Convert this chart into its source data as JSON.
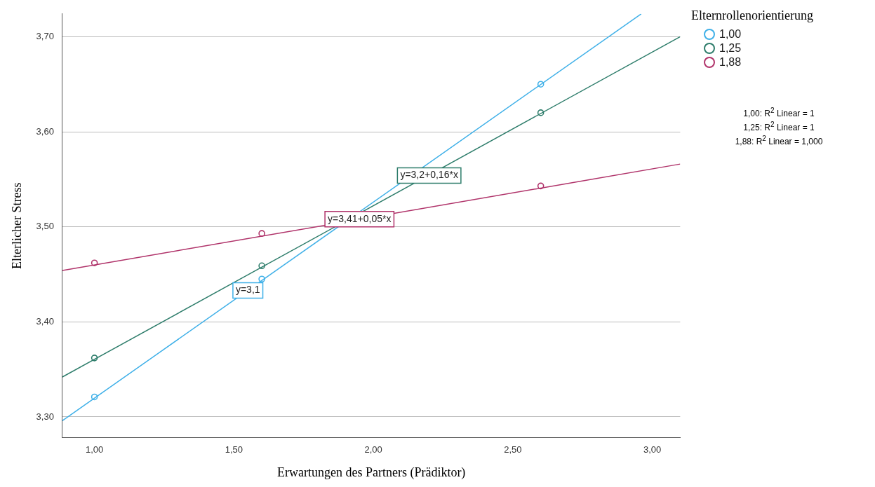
{
  "chart_data": {
    "type": "scatter",
    "xlabel": "Erwartungen des Partners (Prädiktor)",
    "ylabel": "Elterlicher Stress",
    "legend_title": "Elternrollenorientierung",
    "xlim": [
      0.885,
      3.1
    ],
    "xticks": [
      {
        "value": 1,
        "label": "1,00"
      },
      {
        "value": 1.5,
        "label": "1,50"
      },
      {
        "value": 2,
        "label": "2,00"
      },
      {
        "value": 2.5,
        "label": "2,50"
      },
      {
        "value": 3,
        "label": "3,00"
      }
    ],
    "ylim": [
      3.278,
      3.724
    ],
    "yticks": [
      {
        "value": 3.3,
        "label": "3,30"
      },
      {
        "value": 3.4,
        "label": "3,40"
      },
      {
        "value": 3.5,
        "label": "3,50"
      },
      {
        "value": 3.6,
        "label": "3,60"
      },
      {
        "value": 3.7,
        "label": "3,70"
      }
    ],
    "grid": "y",
    "legend": "right",
    "marker": "circle",
    "series": [
      {
        "name": "1,00",
        "color": "#3fb0e8",
        "x": [
          1,
          1.6,
          2.6
        ],
        "values": [
          3.321,
          3.445,
          3.65
        ]
      },
      {
        "name": "1,25",
        "color": "#2e7d6b",
        "x": [
          1,
          1.6,
          2.6
        ],
        "values": [
          3.362,
          3.459,
          3.62
        ]
      },
      {
        "name": "1,88",
        "color": "#b0336a",
        "x": [
          1,
          1.6,
          2.6
        ],
        "values": [
          3.462,
          3.493,
          3.543
        ]
      },
      {
        "type": "line",
        "marker": "none",
        "color": "#3fb0e8",
        "x": [
          0.885,
          2.96
        ],
        "values": [
          3.296,
          3.724
        ]
      },
      {
        "type": "line",
        "marker": "none",
        "color": "#2e7d6b",
        "x": [
          0.885,
          3.1
        ],
        "values": [
          3.342,
          3.7
        ]
      },
      {
        "type": "line",
        "marker": "none",
        "color": "#b0336a",
        "x": [
          0.885,
          3.1
        ],
        "values": [
          3.454,
          3.566
        ]
      }
    ],
    "annotations": [
      {
        "text": "y=3,1",
        "x": 1.55,
        "y": 3.433
      },
      {
        "text": "y=3,2+0,16*x",
        "x": 2.2,
        "y": 3.554
      },
      {
        "text": "y=3,41+0,05*x",
        "x": 1.95,
        "y": 3.508
      },
      "1,00: R$^{2}$ Linear = 1",
      "1,25: R$^{2}$ Linear = 1",
      "1,88: R$^{2}$ Linear = 1,000"
    ]
  }
}
